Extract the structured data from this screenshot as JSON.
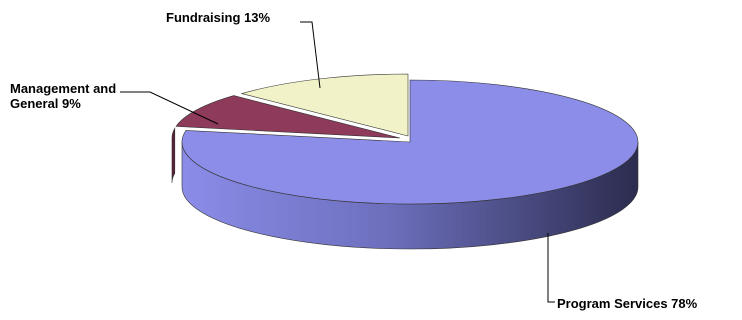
{
  "chart_data": {
    "type": "pie",
    "style": "3d",
    "legend": "none",
    "slices": [
      {
        "name": "Program Services",
        "value": 78,
        "label": "Program Services 78%",
        "color": "#8b8de8"
      },
      {
        "name": "Management and General",
        "value": 9,
        "label_lines": [
          "Management and",
          "General 9%"
        ],
        "color": "#8e3a5a"
      },
      {
        "name": "Fundraising",
        "value": 13,
        "label": "Fundraising 13%",
        "color": "#f2f2c8"
      }
    ]
  }
}
